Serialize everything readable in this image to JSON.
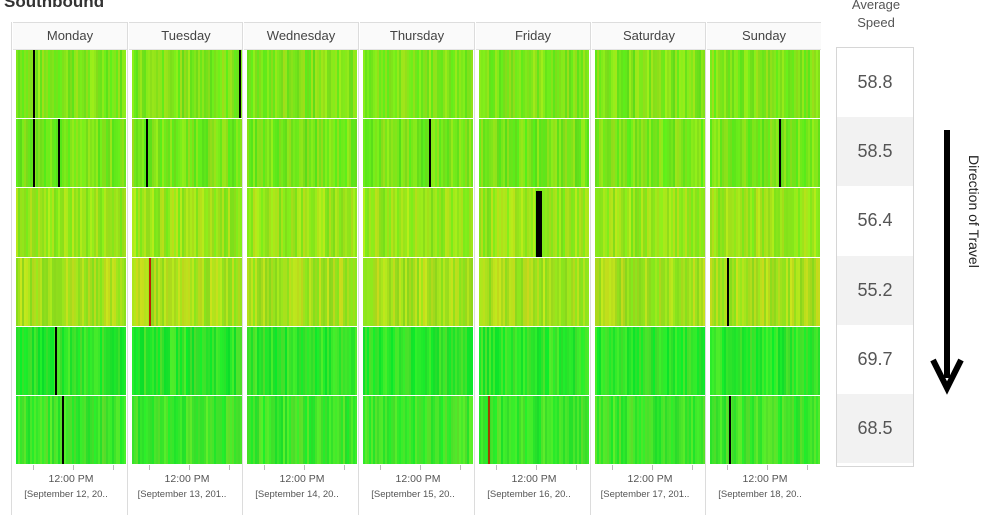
{
  "title": "Southbound",
  "avg_speed_label_line1": "Average",
  "avg_speed_label_line2": "Speed",
  "direction_label": "Direction of Travel",
  "chart_data": {
    "type": "heatmap",
    "title": "Southbound",
    "days": [
      "Monday",
      "Tuesday",
      "Wednesday",
      "Thursday",
      "Friday",
      "Saturday",
      "Sunday"
    ],
    "x_tick_time": "12:00 PM",
    "x_tick_dates": [
      "[September 12, 20..",
      "[September 13, 201..",
      "[September 14, 20..",
      "[September 15, 20..",
      "[September 16, 20..",
      "[September 17, 201..",
      "[September 18, 20.."
    ],
    "rows": 6,
    "average_speeds": [
      "58.8",
      "58.5",
      "56.4",
      "55.2",
      "69.7",
      "68.5"
    ],
    "row_base_colors": [
      "#7fe61a",
      "#77e61a",
      "#99e61a",
      "#a8e01c",
      "#2ee62a",
      "#3ee62a"
    ],
    "color_scale": [
      "#ff0000",
      "#ffff00",
      "#00ff00"
    ],
    "gaps": [
      {
        "day": 0,
        "row": 0,
        "pos": 0.15,
        "w": 2
      },
      {
        "day": 0,
        "row": 1,
        "pos": 0.15,
        "w": 2
      },
      {
        "day": 0,
        "row": 1,
        "pos": 0.38,
        "w": 2
      },
      {
        "day": 0,
        "row": 4,
        "pos": 0.35,
        "w": 2
      },
      {
        "day": 0,
        "row": 5,
        "pos": 0.42,
        "w": 2
      },
      {
        "day": 1,
        "row": 0,
        "pos": 0.97,
        "w": 2
      },
      {
        "day": 1,
        "row": 1,
        "pos": 0.13,
        "w": 2
      },
      {
        "day": 1,
        "row": 3,
        "pos": 0.15,
        "w": 2,
        "color": "#c02000"
      },
      {
        "day": 3,
        "row": 1,
        "pos": 0.6,
        "w": 2
      },
      {
        "day": 4,
        "row": 2,
        "pos": 0.52,
        "w": 6
      },
      {
        "day": 4,
        "row": 5,
        "pos": 0.08,
        "w": 2,
        "color": "#a04000"
      },
      {
        "day": 6,
        "row": 1,
        "pos": 0.63,
        "w": 2
      },
      {
        "day": 6,
        "row": 3,
        "pos": 0.15,
        "w": 2
      },
      {
        "day": 6,
        "row": 5,
        "pos": 0.17,
        "w": 2
      }
    ]
  }
}
